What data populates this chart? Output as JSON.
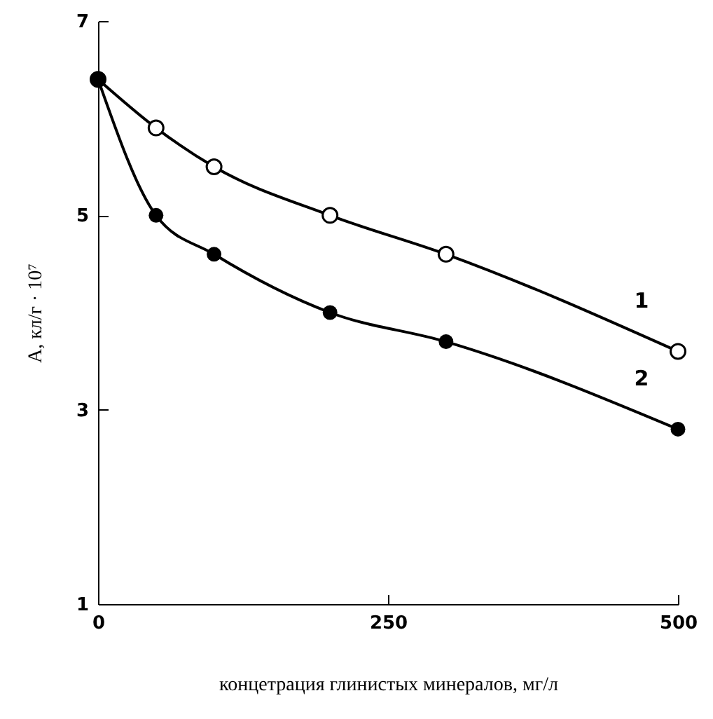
{
  "chart_data": {
    "type": "line",
    "xlabel": "концетрация глинистых минералов, мг/л",
    "ylabel": "А, кл/г · 10⁷",
    "x": [
      0,
      50,
      100,
      200,
      300,
      500
    ],
    "series": [
      {
        "name": "1",
        "color": "#000000",
        "values": [
          6.4,
          5.9,
          5.5,
          5.0,
          4.6,
          3.6
        ]
      },
      {
        "name": "2",
        "color": "#000000",
        "values": [
          6.4,
          5.0,
          4.6,
          4.0,
          3.7,
          2.8
        ]
      }
    ],
    "xlim": [
      0,
      500
    ],
    "xticks": [
      0,
      250,
      500
    ],
    "ylim": [
      1,
      7
    ],
    "yticks": [
      1,
      3,
      5,
      7
    ],
    "grid": false,
    "marker": "circle",
    "line_style": "solid"
  }
}
